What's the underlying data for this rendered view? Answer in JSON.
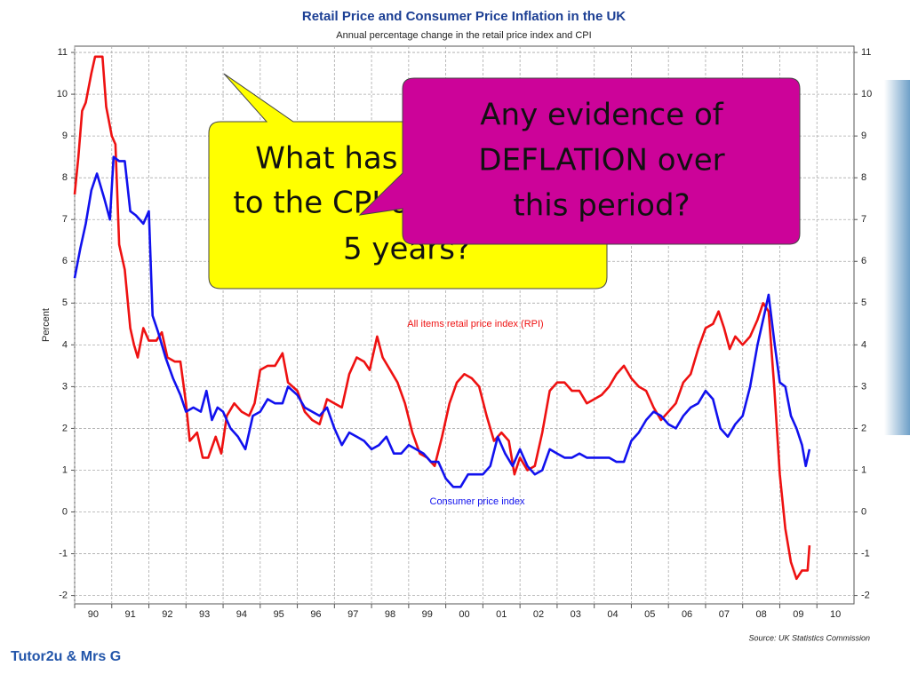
{
  "chart_data": {
    "type": "line",
    "title": "Retail Price and Consumer Price Inflation in the UK",
    "subtitle": "Annual percentage change in the retail price index and CPI",
    "ylabel": "Percent",
    "source": "Source: UK Statistics Commission",
    "grid": true,
    "xlim": [
      1990,
      2011
    ],
    "ylim": [
      -2.2,
      11.15
    ],
    "yticks": [
      -2,
      -1,
      0,
      1,
      2,
      3,
      4,
      5,
      6,
      7,
      8,
      9,
      10,
      11
    ],
    "xticks": [
      {
        "value": 1990,
        "label": "90"
      },
      {
        "value": 1991,
        "label": "91"
      },
      {
        "value": 1992,
        "label": "92"
      },
      {
        "value": 1993,
        "label": "93"
      },
      {
        "value": 1994,
        "label": "94"
      },
      {
        "value": 1995,
        "label": "95"
      },
      {
        "value": 1996,
        "label": "96"
      },
      {
        "value": 1997,
        "label": "97"
      },
      {
        "value": 1998,
        "label": "98"
      },
      {
        "value": 1999,
        "label": "99"
      },
      {
        "value": 2000,
        "label": "00"
      },
      {
        "value": 2001,
        "label": "01"
      },
      {
        "value": 2002,
        "label": "02"
      },
      {
        "value": 2003,
        "label": "03"
      },
      {
        "value": 2004,
        "label": "04"
      },
      {
        "value": 2005,
        "label": "05"
      },
      {
        "value": 2006,
        "label": "06"
      },
      {
        "value": 2007,
        "label": "07"
      },
      {
        "value": 2008,
        "label": "08"
      },
      {
        "value": 2009,
        "label": "09"
      },
      {
        "value": 2010,
        "label": "10"
      }
    ],
    "series": [
      {
        "name": "All items retail price index (RPI)",
        "color": "#ee1111",
        "x": [
          1990.0,
          1990.1,
          1990.2,
          1990.3,
          1990.45,
          1990.55,
          1990.75,
          1990.85,
          1991.0,
          1991.1,
          1991.2,
          1991.35,
          1991.5,
          1991.6,
          1991.7,
          1991.85,
          1992.0,
          1992.2,
          1992.35,
          1992.5,
          1992.7,
          1992.85,
          1993.0,
          1993.1,
          1993.3,
          1993.45,
          1993.6,
          1993.8,
          1993.95,
          1994.1,
          1994.3,
          1994.5,
          1994.7,
          1994.85,
          1995.0,
          1995.2,
          1995.4,
          1995.6,
          1995.75,
          1996.0,
          1996.2,
          1996.4,
          1996.6,
          1996.8,
          1997.0,
          1997.2,
          1997.4,
          1997.6,
          1997.8,
          1997.95,
          1998.15,
          1998.3,
          1998.5,
          1998.7,
          1998.9,
          1999.1,
          1999.3,
          1999.5,
          1999.7,
          1999.9,
          2000.1,
          2000.3,
          2000.5,
          2000.7,
          2000.9,
          2001.1,
          2001.3,
          2001.5,
          2001.7,
          2001.85,
          2002.0,
          2002.2,
          2002.4,
          2002.6,
          2002.8,
          2003.0,
          2003.2,
          2003.4,
          2003.6,
          2003.8,
          2004.0,
          2004.2,
          2004.4,
          2004.6,
          2004.8,
          2005.0,
          2005.2,
          2005.4,
          2005.6,
          2005.8,
          2006.0,
          2006.2,
          2006.4,
          2006.6,
          2006.8,
          2007.0,
          2007.2,
          2007.35,
          2007.5,
          2007.65,
          2007.8,
          2008.0,
          2008.2,
          2008.4,
          2008.55,
          2008.7,
          2008.85,
          2009.0,
          2009.15,
          2009.3,
          2009.45,
          2009.6,
          2009.75,
          2009.8
        ],
        "values": [
          7.6,
          8.5,
          9.6,
          9.8,
          10.5,
          10.9,
          10.9,
          9.7,
          9.0,
          8.8,
          6.4,
          5.8,
          4.4,
          4.0,
          3.7,
          4.4,
          4.1,
          4.1,
          4.3,
          3.7,
          3.6,
          3.6,
          2.6,
          1.7,
          1.9,
          1.3,
          1.3,
          1.8,
          1.4,
          2.3,
          2.6,
          2.4,
          2.3,
          2.6,
          3.4,
          3.5,
          3.5,
          3.8,
          3.1,
          2.9,
          2.4,
          2.2,
          2.1,
          2.7,
          2.6,
          2.5,
          3.3,
          3.7,
          3.6,
          3.4,
          4.2,
          3.7,
          3.4,
          3.1,
          2.6,
          1.9,
          1.4,
          1.3,
          1.1,
          1.8,
          2.6,
          3.1,
          3.3,
          3.2,
          3.0,
          2.3,
          1.7,
          1.9,
          1.7,
          0.9,
          1.3,
          1.0,
          1.1,
          1.9,
          2.9,
          3.1,
          3.1,
          2.9,
          2.9,
          2.6,
          2.7,
          2.8,
          3.0,
          3.3,
          3.5,
          3.2,
          3.0,
          2.9,
          2.5,
          2.2,
          2.4,
          2.6,
          3.1,
          3.3,
          3.9,
          4.4,
          4.5,
          4.8,
          4.4,
          3.9,
          4.2,
          4.0,
          4.2,
          4.6,
          5.0,
          4.8,
          3.0,
          0.9,
          -0.4,
          -1.2,
          -1.6,
          -1.4,
          -1.4,
          -0.8
        ]
      },
      {
        "name": "Consumer price index",
        "color": "#1111ee",
        "x": [
          1990.0,
          1990.15,
          1990.3,
          1990.45,
          1990.6,
          1990.8,
          1990.95,
          1991.05,
          1991.2,
          1991.35,
          1991.5,
          1991.65,
          1991.85,
          1992.0,
          1992.1,
          1992.25,
          1992.45,
          1992.65,
          1992.85,
          1993.0,
          1993.2,
          1993.4,
          1993.55,
          1993.7,
          1993.85,
          1994.0,
          1994.2,
          1994.4,
          1994.6,
          1994.8,
          1995.0,
          1995.2,
          1995.4,
          1995.6,
          1995.75,
          1996.0,
          1996.2,
          1996.4,
          1996.6,
          1996.8,
          1997.0,
          1997.2,
          1997.4,
          1997.6,
          1997.8,
          1998.0,
          1998.2,
          1998.4,
          1998.6,
          1998.8,
          1999.0,
          1999.2,
          1999.4,
          1999.6,
          1999.8,
          2000.0,
          2000.2,
          2000.4,
          2000.6,
          2000.8,
          2001.0,
          2001.2,
          2001.4,
          2001.6,
          2001.8,
          2002.0,
          2002.2,
          2002.4,
          2002.6,
          2002.8,
          2003.0,
          2003.2,
          2003.4,
          2003.6,
          2003.8,
          2004.0,
          2004.2,
          2004.4,
          2004.6,
          2004.8,
          2005.0,
          2005.2,
          2005.4,
          2005.6,
          2005.8,
          2006.0,
          2006.2,
          2006.4,
          2006.6,
          2006.8,
          2007.0,
          2007.2,
          2007.4,
          2007.6,
          2007.8,
          2008.0,
          2008.2,
          2008.4,
          2008.6,
          2008.7,
          2008.85,
          2009.0,
          2009.15,
          2009.3,
          2009.45,
          2009.6,
          2009.7,
          2009.8
        ],
        "values": [
          5.6,
          6.3,
          6.9,
          7.7,
          8.1,
          7.5,
          7.0,
          8.5,
          8.4,
          8.4,
          7.2,
          7.1,
          6.9,
          7.2,
          4.7,
          4.3,
          3.7,
          3.2,
          2.8,
          2.4,
          2.5,
          2.4,
          2.9,
          2.2,
          2.5,
          2.4,
          2.0,
          1.8,
          1.5,
          2.3,
          2.4,
          2.7,
          2.6,
          2.6,
          3.0,
          2.8,
          2.5,
          2.4,
          2.3,
          2.5,
          2.0,
          1.6,
          1.9,
          1.8,
          1.7,
          1.5,
          1.6,
          1.8,
          1.4,
          1.4,
          1.6,
          1.5,
          1.4,
          1.2,
          1.2,
          0.8,
          0.6,
          0.6,
          0.9,
          0.9,
          0.9,
          1.1,
          1.8,
          1.4,
          1.1,
          1.5,
          1.1,
          0.9,
          1.0,
          1.5,
          1.4,
          1.3,
          1.3,
          1.4,
          1.3,
          1.3,
          1.3,
          1.3,
          1.2,
          1.2,
          1.7,
          1.9,
          2.2,
          2.4,
          2.3,
          2.1,
          2.0,
          2.3,
          2.5,
          2.6,
          2.9,
          2.7,
          2.0,
          1.8,
          2.1,
          2.3,
          3.0,
          4.0,
          4.8,
          5.2,
          4.1,
          3.1,
          3.0,
          2.3,
          2.0,
          1.6,
          1.1,
          1.5
        ]
      }
    ]
  },
  "callouts": [
    {
      "lines": [
        "What has happened",
        "to the CPI over the last",
        "5 years?"
      ]
    },
    {
      "lines": [
        "Any evidence of",
        "DEFLATION over",
        "this period?"
      ]
    }
  ],
  "footer": "Tutor2u & Mrs G"
}
